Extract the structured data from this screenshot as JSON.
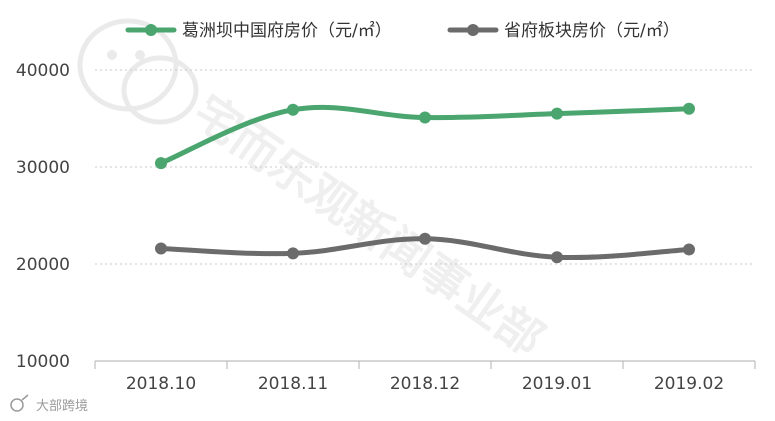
{
  "chart_data": {
    "type": "line",
    "categories": [
      "2018.10",
      "2018.11",
      "2018.12",
      "2019.01",
      "2019.02"
    ],
    "series": [
      {
        "name": "葛洲坝中国府房价（元/㎡）",
        "color": "#4aa56f",
        "values": [
          30400,
          35900,
          35100,
          35500,
          36000
        ]
      },
      {
        "name": "省府板块房价（元/㎡）",
        "color": "#6b6b6b",
        "values": [
          21600,
          21100,
          22600,
          20700,
          21500
        ]
      }
    ],
    "ylim": [
      10000,
      40000
    ],
    "yticks": [
      10000,
      20000,
      30000,
      40000
    ],
    "grid": true,
    "legend": "top"
  },
  "watermark": {
    "text": "宅而乐观新闻事业部",
    "source": "大部跨境"
  }
}
